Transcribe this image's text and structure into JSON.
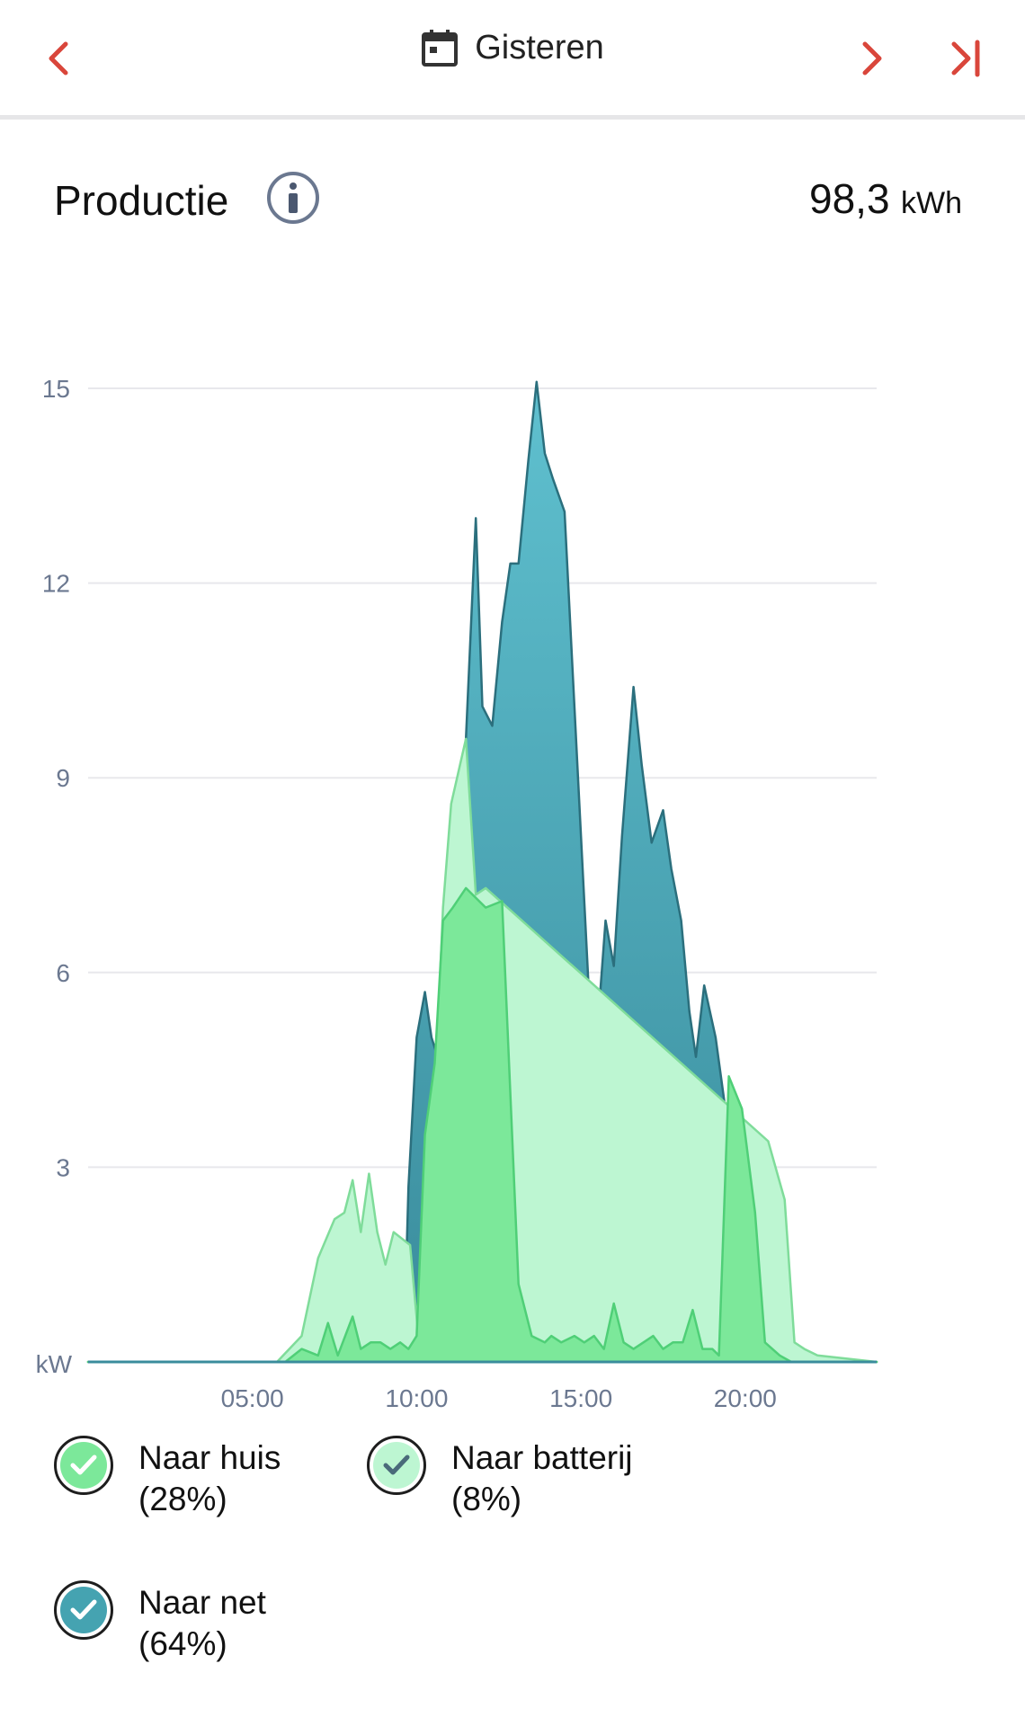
{
  "header": {
    "date_label": "Gisteren",
    "accent_color": "#d9463b",
    "icons": {
      "prev": "chevron-left-icon",
      "next": "chevron-right-icon",
      "last": "skip-to-end-icon",
      "calendar": "calendar-icon"
    }
  },
  "production": {
    "title": "Productie",
    "total_value": "98,3",
    "total_unit": "kWh",
    "info_icon": "info-icon"
  },
  "chart_data": {
    "type": "area",
    "ylabel": "kW",
    "ylim": [
      0,
      15
    ],
    "yticks": [
      3,
      6,
      9,
      12,
      15
    ],
    "xlim": [
      0,
      24
    ],
    "xticks": [
      "05:00",
      "10:00",
      "15:00",
      "20:00"
    ],
    "xtick_hours": [
      5,
      10,
      15,
      20
    ],
    "grid": true,
    "series": [
      {
        "name": "Naar net",
        "color": "#45a3b1",
        "x": [
          0,
          6,
          9.6,
          9.75,
          10.0,
          10.25,
          10.45,
          10.7,
          11.0,
          11.25,
          11.5,
          11.8,
          12.0,
          12.3,
          12.6,
          12.85,
          13.1,
          13.4,
          13.65,
          13.9,
          14.15,
          14.5,
          15.25,
          15.5,
          15.75,
          16.0,
          16.25,
          16.6,
          16.85,
          17.15,
          17.5,
          17.75,
          18.05,
          18.3,
          18.5,
          18.75,
          19.1,
          19.45,
          19.85,
          20.5,
          21.2,
          24
        ],
        "values": [
          0,
          0,
          0,
          2.7,
          5.0,
          5.7,
          5.0,
          4.6,
          6.6,
          8.4,
          9.6,
          13.0,
          10.1,
          9.8,
          11.4,
          12.3,
          12.3,
          13.9,
          15.1,
          14.0,
          13.6,
          13.1,
          5.6,
          5.1,
          6.8,
          6.1,
          8.1,
          10.4,
          9.2,
          8.0,
          8.5,
          7.6,
          6.8,
          5.4,
          4.7,
          5.8,
          5.0,
          3.7,
          1.5,
          0.3,
          0,
          0
        ]
      },
      {
        "name": "Naar batterij",
        "color": "#bdf6d2",
        "x": [
          0,
          5.75,
          6.5,
          7.0,
          7.5,
          7.8,
          8.05,
          8.3,
          8.55,
          8.8,
          9.05,
          9.3,
          9.55,
          9.8,
          10.05,
          10.3,
          10.8,
          11.05,
          11.5,
          11.8,
          12.1,
          20.7,
          21.2,
          21.5,
          21.8,
          22.2,
          24
        ],
        "values": [
          0,
          0,
          0.4,
          1.6,
          2.2,
          2.3,
          2.8,
          2.0,
          2.9,
          2.0,
          1.5,
          2.0,
          1.9,
          1.8,
          0.4,
          1.0,
          7.0,
          8.6,
          9.6,
          7.2,
          7.3,
          3.4,
          2.5,
          0.3,
          0.2,
          0.1,
          0
        ]
      },
      {
        "name": "Naar huis",
        "color": "#7ce89a",
        "x": [
          0,
          5.75,
          6.0,
          6.5,
          7.0,
          7.3,
          7.6,
          8.05,
          8.3,
          8.6,
          8.9,
          9.2,
          9.5,
          9.75,
          10.0,
          10.25,
          10.55,
          10.8,
          11.1,
          11.5,
          12.1,
          12.6,
          13.1,
          13.5,
          13.9,
          14.1,
          14.4,
          14.8,
          15.1,
          15.4,
          15.7,
          16.0,
          16.3,
          16.6,
          16.9,
          17.2,
          17.5,
          17.8,
          18.1,
          18.4,
          18.7,
          19.0,
          19.2,
          19.5,
          19.9,
          20.3,
          20.6,
          21.05,
          21.4,
          24
        ],
        "values": [
          0,
          0,
          0,
          0.2,
          0.1,
          0.6,
          0.1,
          0.7,
          0.2,
          0.3,
          0.3,
          0.2,
          0.3,
          0.2,
          0.4,
          3.5,
          4.6,
          6.8,
          7.0,
          7.3,
          7.0,
          7.1,
          1.2,
          0.4,
          0.3,
          0.4,
          0.3,
          0.4,
          0.3,
          0.4,
          0.2,
          0.9,
          0.3,
          0.2,
          0.3,
          0.4,
          0.2,
          0.3,
          0.3,
          0.8,
          0.2,
          0.2,
          0.1,
          4.4,
          3.9,
          2.3,
          0.3,
          0.1,
          0,
          0
        ]
      }
    ]
  },
  "legend": [
    {
      "label": "Naar huis",
      "pct": "(28%)",
      "fill": "#7ce89a",
      "check": "check-icon",
      "check_color": "#ffffff"
    },
    {
      "label": "Naar batterij",
      "pct": "(8%)",
      "fill": "#bdf6d2",
      "check": "check-icon",
      "check_color": "#4a6a7a"
    },
    {
      "label": "Naar net",
      "pct": "(64%)",
      "fill": "#45a3b1",
      "check": "check-icon",
      "check_color": "#ffffff"
    }
  ]
}
